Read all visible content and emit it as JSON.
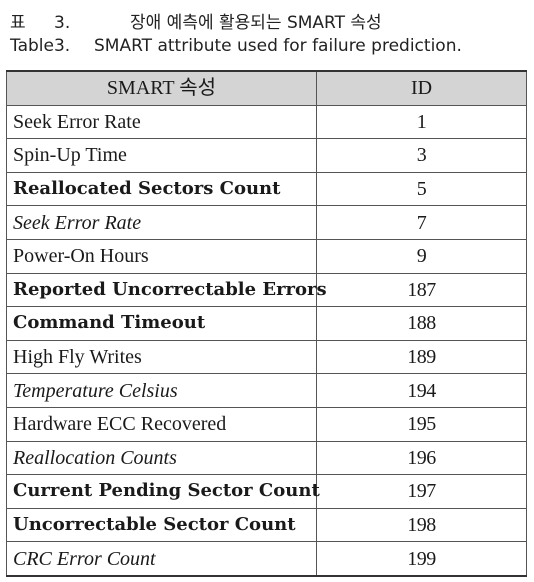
{
  "caption": {
    "label_ko": "표",
    "number_ko": "3.",
    "title_ko": "장애 예측에 활용되는 SMART 속성",
    "number_en": "Table3.",
    "title_en": "SMART attribute used for failure prediction."
  },
  "table": {
    "headers": [
      "SMART 속성",
      "ID"
    ],
    "rows": [
      {
        "name": "Seek Error Rate",
        "id": "1",
        "style": "plain"
      },
      {
        "name": "Spin-Up Time",
        "id": "3",
        "style": "plain"
      },
      {
        "name": "Reallocated Sectors Count",
        "id": "5",
        "style": "bold"
      },
      {
        "name": "Seek Error Rate",
        "id": "7",
        "style": "italic"
      },
      {
        "name": "Power-On Hours",
        "id": "9",
        "style": "plain"
      },
      {
        "name": "Reported Uncorrectable Errors",
        "id": "187",
        "style": "bold"
      },
      {
        "name": "Command Timeout",
        "id": "188",
        "style": "bold"
      },
      {
        "name": "High Fly Writes",
        "id": "189",
        "style": "plain"
      },
      {
        "name": "Temperature Celsius",
        "id": "194",
        "style": "italic"
      },
      {
        "name": "Hardware ECC Recovered",
        "id": "195",
        "style": "plain"
      },
      {
        "name": "Reallocation Counts",
        "id": "196",
        "style": "italic"
      },
      {
        "name": "Current Pending Sector Count",
        "id": "197",
        "style": "bold"
      },
      {
        "name": "Uncorrectable Sector Count",
        "id": "198",
        "style": "bold"
      },
      {
        "name": "CRC Error Count",
        "id": "199",
        "style": "italic"
      }
    ]
  }
}
